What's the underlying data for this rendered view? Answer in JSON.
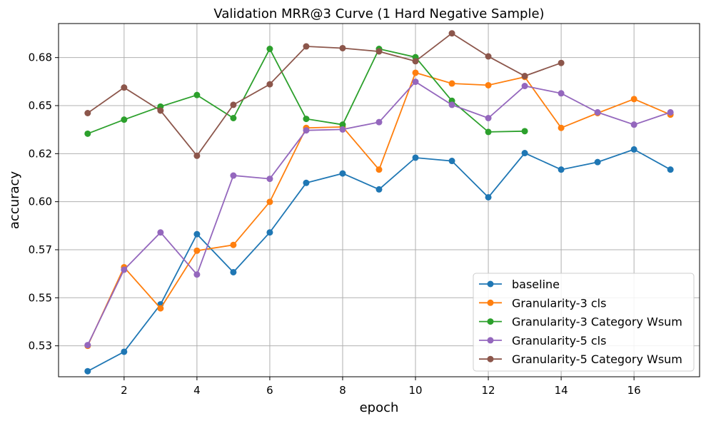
{
  "chart_data": {
    "type": "line",
    "title": "Validation MRR@3 Curve (1 Hard Negative Sample)",
    "xlabel": "epoch",
    "ylabel": "accuracy",
    "xlim": [
      0.2,
      17.8
    ],
    "ylim": [
      0.5089,
      0.6927
    ],
    "xticks": [
      2,
      4,
      6,
      8,
      10,
      12,
      14,
      16
    ],
    "yticks": [
      0.525,
      0.55,
      0.575,
      0.6,
      0.625,
      0.65,
      0.675
    ],
    "ytick_labels": [
      "0.53",
      "0.55",
      "0.57",
      "0.60",
      "0.62",
      "0.65",
      "0.68"
    ],
    "grid": true,
    "legend_position": "lower-right",
    "series": [
      {
        "name": "baseline",
        "color": "#1f77b4",
        "x": [
          1,
          2,
          3,
          4,
          5,
          6,
          7,
          8,
          9,
          10,
          11,
          12,
          13,
          14,
          15,
          16,
          17
        ],
        "y": [
          0.5118,
          0.5219,
          0.5466,
          0.5831,
          0.5633,
          0.584,
          0.6098,
          0.6147,
          0.6064,
          0.6229,
          0.6212,
          0.6023,
          0.6253,
          0.6167,
          0.6206,
          0.6272,
          0.6167
        ]
      },
      {
        "name": "Granularity-3 cls",
        "color": "#ff7f0e",
        "x": [
          1,
          2,
          3,
          4,
          5,
          6,
          7,
          8,
          9,
          10,
          11,
          12,
          13,
          14,
          15,
          16,
          17
        ],
        "y": [
          0.525,
          0.5659,
          0.5445,
          0.5745,
          0.5775,
          0.5999,
          0.6384,
          0.6389,
          0.6167,
          0.6671,
          0.6615,
          0.6606,
          0.6649,
          0.6384,
          0.6461,
          0.6534,
          0.6453
        ]
      },
      {
        "name": "Granularity-3 Category Wsum",
        "color": "#2ca02c",
        "x": [
          1,
          2,
          3,
          4,
          5,
          6,
          7,
          8,
          9,
          10,
          11,
          12,
          13
        ],
        "y": [
          0.6354,
          0.6427,
          0.6495,
          0.6555,
          0.6435,
          0.6795,
          0.6431,
          0.6401,
          0.6795,
          0.6752,
          0.6525,
          0.6363,
          0.6367
        ]
      },
      {
        "name": "Granularity-5 cls",
        "color": "#9467bd",
        "x": [
          1,
          2,
          3,
          4,
          5,
          6,
          7,
          8,
          9,
          10,
          11,
          12,
          13,
          14,
          15,
          16,
          17
        ],
        "y": [
          0.5254,
          0.5646,
          0.584,
          0.5621,
          0.6136,
          0.6119,
          0.6371,
          0.6376,
          0.6414,
          0.6624,
          0.6504,
          0.6435,
          0.6602,
          0.6564,
          0.6465,
          0.6401,
          0.6465
        ]
      },
      {
        "name": "Granularity-5 Category Wsum",
        "color": "#8c564b",
        "x": [
          1,
          2,
          3,
          4,
          5,
          6,
          7,
          8,
          9,
          10,
          11,
          12,
          13,
          14
        ],
        "y": [
          0.6461,
          0.6594,
          0.6474,
          0.6239,
          0.6504,
          0.6611,
          0.6808,
          0.6799,
          0.6782,
          0.6731,
          0.6876,
          0.6756,
          0.6654,
          0.6722
        ]
      }
    ]
  }
}
